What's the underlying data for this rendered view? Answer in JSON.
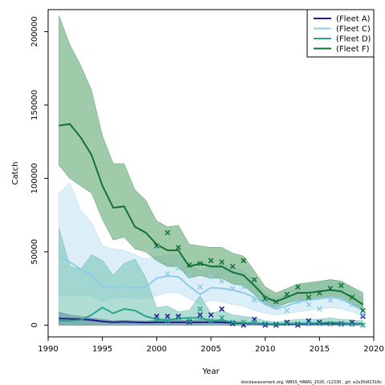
{
  "chart_data": {
    "type": "line",
    "title": "",
    "xlabel": "Year",
    "ylabel": "Catch",
    "xlim": [
      1990,
      2020
    ],
    "ylim": [
      -8000,
      215000
    ],
    "xticks": [
      1990,
      1995,
      2000,
      2005,
      2010,
      2015,
      2020
    ],
    "yticks": [
      0,
      50000,
      100000,
      150000,
      200000
    ],
    "ytick_labels": [
      "0",
      "50000",
      "100000",
      "150000",
      "200000"
    ],
    "legend_position": "top-right",
    "series": [
      {
        "name": "(Fleet A)",
        "color": "#1e1b8f",
        "band_color": "#3b3f7a",
        "years": [
          1991,
          1992,
          1993,
          1994,
          1995,
          1996,
          1997,
          1998,
          1999,
          2000,
          2001,
          2002,
          2003,
          2004,
          2005,
          2006,
          2007,
          2008,
          2009,
          2010,
          2011,
          2012,
          2013,
          2014,
          2015,
          2016,
          2017,
          2018,
          2019
        ],
        "fit": [
          4500,
          4300,
          4000,
          3500,
          2500,
          2000,
          2200,
          2000,
          1800,
          2000,
          2000,
          2000,
          2000,
          2000,
          2000,
          2000,
          1500,
          1200,
          1000,
          800,
          500,
          700,
          800,
          900,
          1000,
          1200,
          1100,
          1000,
          900
        ],
        "lower": [
          0,
          0,
          0,
          0,
          0,
          0,
          0,
          0,
          0,
          0,
          0,
          0,
          0,
          0,
          0,
          0,
          0,
          0,
          0,
          0,
          0,
          0,
          0,
          0,
          0,
          0,
          0,
          0,
          0
        ],
        "upper": [
          9000,
          7000,
          6000,
          5000,
          4000,
          3000,
          3500,
          3000,
          3000,
          3500,
          4000,
          3500,
          3000,
          4000,
          3000,
          3000,
          2500,
          2000,
          1800,
          1500,
          1000,
          1300,
          1500,
          1600,
          1800,
          2000,
          1800,
          1700,
          1600
        ],
        "obs_years": [
          2000,
          2001,
          2002,
          2003,
          2004,
          2005,
          2006,
          2007,
          2008,
          2009,
          2010,
          2011,
          2012,
          2013,
          2014,
          2015,
          2016,
          2017,
          2018,
          2019
        ],
        "obs": [
          6000,
          6000,
          6000,
          2000,
          7000,
          7000,
          11000,
          1000,
          0,
          4000,
          0,
          0,
          2000,
          0,
          3000,
          2000,
          1000,
          1000,
          2000,
          6000
        ]
      },
      {
        "name": "(Fleet C)",
        "color": "#8ecce8",
        "band_color": "#c4e3f4",
        "years": [
          1991,
          1992,
          1993,
          1994,
          1995,
          1996,
          1997,
          1998,
          1999,
          2000,
          2001,
          2002,
          2003,
          2004,
          2005,
          2006,
          2007,
          2008,
          2009,
          2010,
          2011,
          2012,
          2013,
          2014,
          2015,
          2016,
          2017,
          2018,
          2019
        ],
        "fit": [
          47000,
          43000,
          38000,
          34000,
          26000,
          26000,
          26500,
          25500,
          26000,
          32000,
          33500,
          33000,
          26500,
          21000,
          25500,
          25000,
          24000,
          22000,
          19000,
          14000,
          11000,
          13000,
          16000,
          17000,
          18000,
          19000,
          18000,
          14000,
          10000
        ],
        "lower": [
          20000,
          20000,
          20000,
          20000,
          16000,
          18000,
          19000,
          18000,
          18000,
          20000,
          22000,
          22000,
          18000,
          14000,
          17000,
          16000,
          14000,
          13000,
          10000,
          8000,
          7000,
          8000,
          9000,
          10000,
          11000,
          12000,
          11000,
          9000,
          6000
        ],
        "upper": [
          90000,
          97000,
          78000,
          70000,
          54000,
          52000,
          51000,
          48000,
          45000,
          47000,
          48000,
          48000,
          42000,
          37000,
          40000,
          42000,
          39000,
          37000,
          31000,
          22000,
          19000,
          22000,
          26000,
          28000,
          29000,
          31000,
          30000,
          24000,
          18000
        ],
        "obs_years": [
          2000,
          2001,
          2002,
          2003,
          2004,
          2005,
          2006,
          2007,
          2008,
          2009,
          2010,
          2011,
          2012,
          2013,
          2014,
          2015,
          2016,
          2017,
          2018,
          2019
        ],
        "obs": [
          53000,
          35000,
          39000,
          34000,
          26000,
          33000,
          30000,
          25000,
          26000,
          17000,
          17000,
          13000,
          10000,
          16000,
          14000,
          11000,
          17000,
          18000,
          14000,
          7000
        ]
      },
      {
        "name": "(Fleet D)",
        "color": "#2aa68f",
        "band_color": "#7cc7b8",
        "years": [
          1991,
          1992,
          1993,
          1994,
          1995,
          1996,
          1997,
          1998,
          1999,
          2000,
          2001,
          2002,
          2003,
          2004,
          2005,
          2006,
          2007,
          2008,
          2009,
          2010,
          2011,
          2012,
          2013,
          2014,
          2015,
          2016,
          2017,
          2018,
          2019
        ],
        "fit": [
          3000,
          3000,
          3500,
          7000,
          12000,
          8000,
          11000,
          10000,
          6000,
          4000,
          3500,
          4500,
          5000,
          5000,
          3000,
          3500,
          2000,
          1500,
          1500,
          1000,
          800,
          1000,
          1200,
          1300,
          1500,
          2000,
          1500,
          1200,
          1000
        ],
        "lower": [
          0,
          0,
          0,
          0,
          0,
          0,
          0,
          0,
          0,
          0,
          0,
          0,
          0,
          0,
          0,
          0,
          0,
          0,
          0,
          0,
          0,
          0,
          0,
          0,
          0,
          0,
          0,
          0,
          0
        ],
        "upper": [
          66000,
          40000,
          38000,
          48000,
          44000,
          34000,
          42000,
          45000,
          32000,
          12000,
          13000,
          9000,
          10000,
          20000,
          8000,
          10000,
          7000,
          6000,
          5000,
          3000,
          2000,
          3000,
          4000,
          4000,
          4000,
          5000,
          4000,
          3500,
          3000
        ],
        "obs_years": [
          2000,
          2001,
          2002,
          2003,
          2004,
          2005,
          2006,
          2007,
          2008,
          2009,
          2010,
          2011,
          2012,
          2013,
          2014,
          2015,
          2016,
          2017,
          2018,
          2019
        ],
        "obs": [
          4000,
          3000,
          5000,
          3000,
          11000,
          3000,
          5000,
          2000,
          2000,
          2000,
          1000,
          1000,
          1000,
          1000,
          1000,
          1000,
          1000,
          500,
          500,
          0
        ]
      },
      {
        "name": "(Fleet F)",
        "color": "#137032",
        "band_color": "#5fa873",
        "years": [
          1991,
          1992,
          1993,
          1994,
          1995,
          1996,
          1997,
          1998,
          1999,
          2000,
          2001,
          2002,
          2003,
          2004,
          2005,
          2006,
          2007,
          2008,
          2009,
          2010,
          2011,
          2012,
          2013,
          2014,
          2015,
          2016,
          2017,
          2018,
          2019
        ],
        "fit": [
          136000,
          137000,
          128000,
          116000,
          95000,
          80000,
          81000,
          67000,
          63000,
          55000,
          51000,
          51000,
          40000,
          42000,
          40000,
          40000,
          36000,
          34000,
          27000,
          19000,
          16000,
          19000,
          22000,
          22000,
          23000,
          24000,
          23000,
          19000,
          14000
        ],
        "lower": [
          109000,
          100000,
          95000,
          90000,
          72000,
          58000,
          60000,
          52000,
          50000,
          44000,
          40000,
          40000,
          32000,
          34000,
          32000,
          32000,
          28000,
          27000,
          21000,
          14000,
          12000,
          15000,
          17000,
          17000,
          18000,
          19000,
          18000,
          15000,
          10000
        ],
        "upper": [
          211000,
          191000,
          177000,
          160000,
          129000,
          110000,
          110000,
          92000,
          85000,
          71000,
          67000,
          68000,
          55000,
          54000,
          53000,
          53000,
          49000,
          47000,
          37000,
          26000,
          22000,
          25000,
          28000,
          29000,
          30000,
          31000,
          30000,
          26000,
          22000
        ],
        "obs_years": [
          2000,
          2001,
          2002,
          2003,
          2004,
          2005,
          2006,
          2007,
          2008,
          2009,
          2010,
          2011,
          2012,
          2013,
          2014,
          2015,
          2016,
          2017,
          2018,
          2019
        ],
        "obs": [
          54000,
          63000,
          53000,
          41000,
          42000,
          44000,
          43000,
          40000,
          44000,
          31000,
          18000,
          16000,
          21000,
          26000,
          19000,
          22000,
          25000,
          27000,
          19000,
          10000
        ]
      }
    ]
  },
  "footer": {
    "text": "stockassessment.org, WBSS_HAWG_2020, r12330 ,  git: e2a30df2316c"
  }
}
